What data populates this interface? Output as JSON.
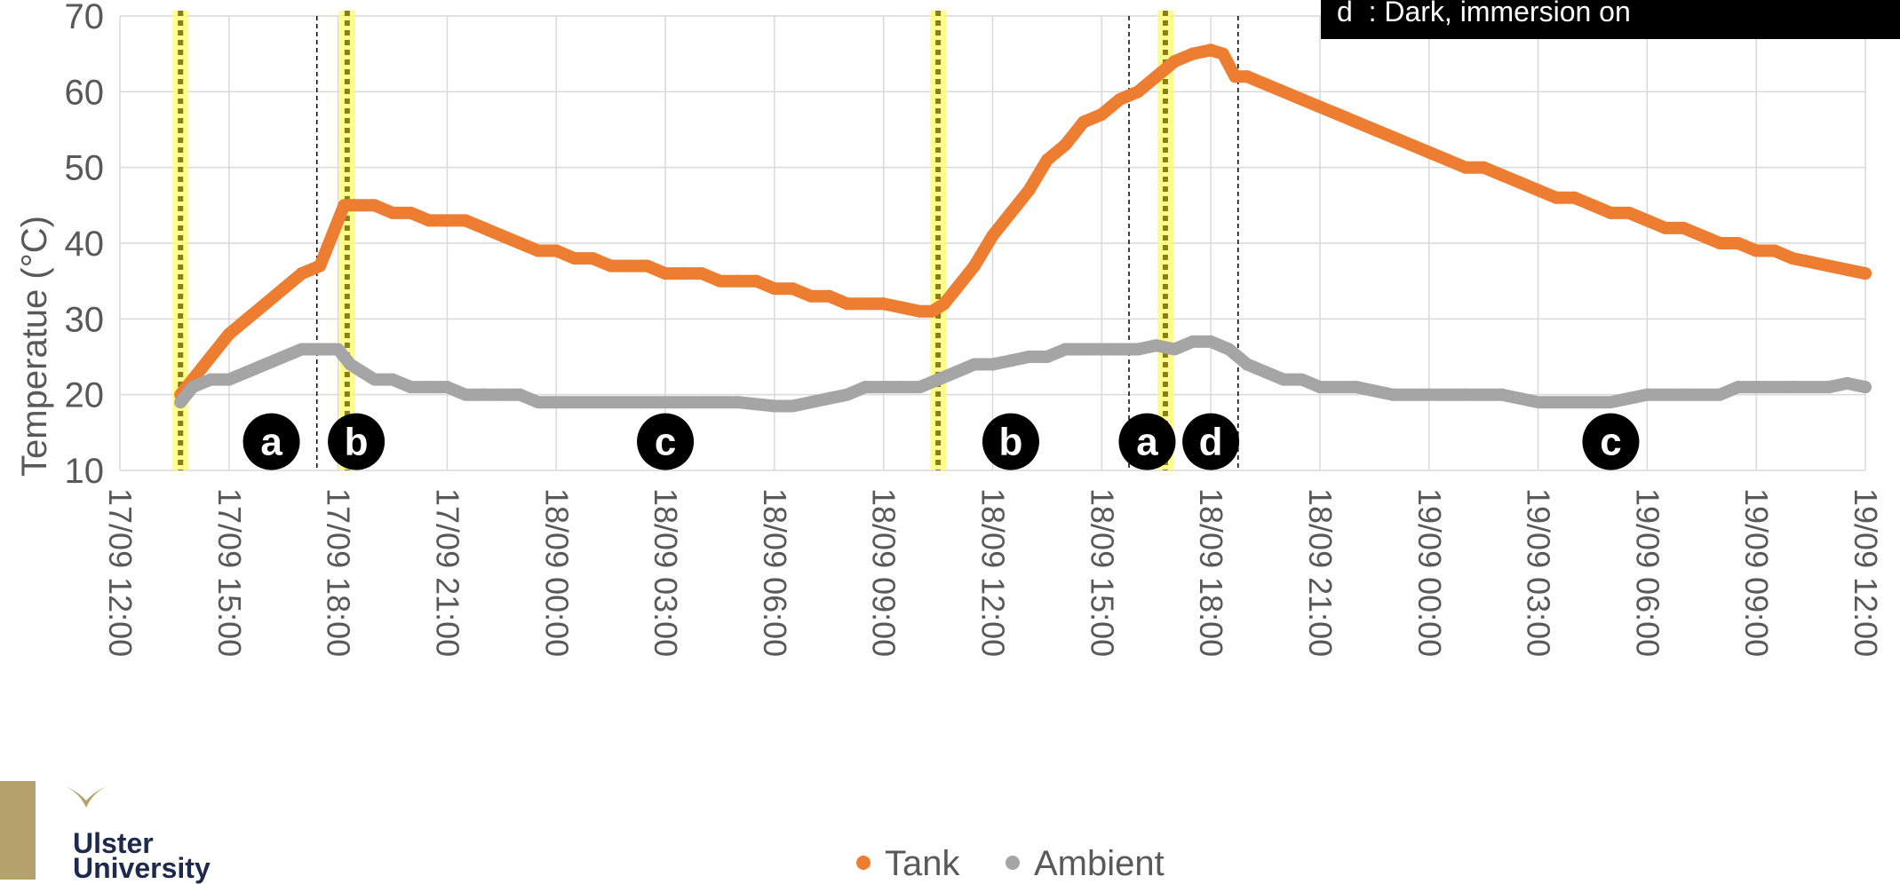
{
  "chart_data": {
    "type": "line",
    "ylabel": "Temperatue (°C)",
    "ylim": [
      10,
      70
    ],
    "yticks": [
      10,
      20,
      30,
      40,
      50,
      60,
      70
    ],
    "xlim": [
      "17/09 12:00",
      "19/09 12:00"
    ],
    "xtick_labels": [
      "17/09 12:00",
      "17/09 15:00",
      "17/09 18:00",
      "17/09 21:00",
      "18/09 00:00",
      "18/09 03:00",
      "18/09 06:00",
      "18/09 09:00",
      "18/09 12:00",
      "18/09 15:00",
      "18/09 18:00",
      "18/09 21:00",
      "19/09 00:00",
      "19/09 03:00",
      "19/09 06:00",
      "19/09 09:00",
      "19/09 12:00"
    ],
    "grid": true,
    "legend_position": "bottom",
    "series": [
      {
        "name": "Tank",
        "color": "#ED7D31",
        "points": [
          [
            "17/09 13:40",
            20
          ],
          [
            "17/09 14:00",
            22
          ],
          [
            "17/09 14:30",
            25
          ],
          [
            "17/09 15:00",
            28
          ],
          [
            "17/09 15:30",
            30
          ],
          [
            "17/09 16:00",
            32
          ],
          [
            "17/09 16:30",
            34
          ],
          [
            "17/09 17:00",
            36
          ],
          [
            "17/09 17:30",
            37
          ],
          [
            "17/09 17:50",
            41
          ],
          [
            "17/09 18:10",
            45
          ],
          [
            "17/09 18:40",
            45
          ],
          [
            "17/09 19:00",
            45
          ],
          [
            "17/09 19:30",
            44
          ],
          [
            "17/09 20:00",
            44
          ],
          [
            "17/09 20:30",
            43
          ],
          [
            "17/09 21:00",
            43
          ],
          [
            "17/09 21:30",
            43
          ],
          [
            "17/09 22:00",
            42
          ],
          [
            "17/09 22:30",
            41
          ],
          [
            "17/09 23:00",
            40
          ],
          [
            "17/09 23:30",
            39
          ],
          [
            "18/09 00:00",
            39
          ],
          [
            "18/09 00:30",
            38
          ],
          [
            "18/09 01:00",
            38
          ],
          [
            "18/09 01:30",
            37
          ],
          [
            "18/09 02:00",
            37
          ],
          [
            "18/09 02:30",
            37
          ],
          [
            "18/09 03:00",
            36
          ],
          [
            "18/09 03:30",
            36
          ],
          [
            "18/09 04:00",
            36
          ],
          [
            "18/09 04:30",
            35
          ],
          [
            "18/09 05:00",
            35
          ],
          [
            "18/09 05:30",
            35
          ],
          [
            "18/09 06:00",
            34
          ],
          [
            "18/09 06:30",
            34
          ],
          [
            "18/09 07:00",
            33
          ],
          [
            "18/09 07:30",
            33
          ],
          [
            "18/09 08:00",
            32
          ],
          [
            "18/09 08:30",
            32
          ],
          [
            "18/09 09:00",
            32
          ],
          [
            "18/09 09:30",
            31.5
          ],
          [
            "18/09 10:00",
            31
          ],
          [
            "18/09 10:20",
            31
          ],
          [
            "18/09 10:40",
            32
          ],
          [
            "18/09 11:00",
            34
          ],
          [
            "18/09 11:30",
            37
          ],
          [
            "18/09 12:00",
            41
          ],
          [
            "18/09 12:30",
            44
          ],
          [
            "18/09 13:00",
            47
          ],
          [
            "18/09 13:30",
            51
          ],
          [
            "18/09 14:00",
            53
          ],
          [
            "18/09 14:30",
            56
          ],
          [
            "18/09 15:00",
            57
          ],
          [
            "18/09 15:30",
            59
          ],
          [
            "18/09 16:00",
            60
          ],
          [
            "18/09 16:30",
            62
          ],
          [
            "18/09 17:00",
            64
          ],
          [
            "18/09 17:30",
            65
          ],
          [
            "18/09 18:00",
            65.5
          ],
          [
            "18/09 18:20",
            65
          ],
          [
            "18/09 18:40",
            62
          ],
          [
            "18/09 19:00",
            62
          ],
          [
            "18/09 19:30",
            61
          ],
          [
            "18/09 20:00",
            60
          ],
          [
            "18/09 20:30",
            59
          ],
          [
            "18/09 21:00",
            58
          ],
          [
            "18/09 21:30",
            57
          ],
          [
            "18/09 22:00",
            56
          ],
          [
            "18/09 22:30",
            55
          ],
          [
            "18/09 23:00",
            54
          ],
          [
            "18/09 23:30",
            53
          ],
          [
            "19/09 00:00",
            52
          ],
          [
            "19/09 00:30",
            51
          ],
          [
            "19/09 01:00",
            50
          ],
          [
            "19/09 01:30",
            50
          ],
          [
            "19/09 02:00",
            49
          ],
          [
            "19/09 02:30",
            48
          ],
          [
            "19/09 03:00",
            47
          ],
          [
            "19/09 03:30",
            46
          ],
          [
            "19/09 04:00",
            46
          ],
          [
            "19/09 04:30",
            45
          ],
          [
            "19/09 05:00",
            44
          ],
          [
            "19/09 05:30",
            44
          ],
          [
            "19/09 06:00",
            43
          ],
          [
            "19/09 06:30",
            42
          ],
          [
            "19/09 07:00",
            42
          ],
          [
            "19/09 07:30",
            41
          ],
          [
            "19/09 08:00",
            40
          ],
          [
            "19/09 08:30",
            40
          ],
          [
            "19/09 09:00",
            39
          ],
          [
            "19/09 09:30",
            39
          ],
          [
            "19/09 10:00",
            38
          ],
          [
            "19/09 10:30",
            37.5
          ],
          [
            "19/09 11:00",
            37
          ],
          [
            "19/09 11:30",
            36.5
          ],
          [
            "19/09 12:00",
            36
          ]
        ]
      },
      {
        "name": "Ambient",
        "color": "#A5A5A5",
        "points": [
          [
            "17/09 13:40",
            19
          ],
          [
            "17/09 14:00",
            21
          ],
          [
            "17/09 14:30",
            22
          ],
          [
            "17/09 15:00",
            22
          ],
          [
            "17/09 15:30",
            23
          ],
          [
            "17/09 16:00",
            24
          ],
          [
            "17/09 16:30",
            25
          ],
          [
            "17/09 17:00",
            26
          ],
          [
            "17/09 17:30",
            26
          ],
          [
            "17/09 18:00",
            26
          ],
          [
            "17/09 18:20",
            24
          ],
          [
            "17/09 18:40",
            23
          ],
          [
            "17/09 19:00",
            22
          ],
          [
            "17/09 19:30",
            22
          ],
          [
            "17/09 20:00",
            21
          ],
          [
            "17/09 20:30",
            21
          ],
          [
            "17/09 21:00",
            21
          ],
          [
            "17/09 21:30",
            20
          ],
          [
            "17/09 22:00",
            20
          ],
          [
            "17/09 22:30",
            20
          ],
          [
            "17/09 23:00",
            20
          ],
          [
            "17/09 23:30",
            19
          ],
          [
            "18/09 00:00",
            19
          ],
          [
            "18/09 01:00",
            19
          ],
          [
            "18/09 02:00",
            19
          ],
          [
            "18/09 03:00",
            19
          ],
          [
            "18/09 04:00",
            19
          ],
          [
            "18/09 05:00",
            19
          ],
          [
            "18/09 06:00",
            18.5
          ],
          [
            "18/09 06:30",
            18.5
          ],
          [
            "18/09 07:00",
            19
          ],
          [
            "18/09 07:30",
            19.5
          ],
          [
            "18/09 08:00",
            20
          ],
          [
            "18/09 08:30",
            21
          ],
          [
            "18/09 09:00",
            21
          ],
          [
            "18/09 09:30",
            21
          ],
          [
            "18/09 10:00",
            21
          ],
          [
            "18/09 10:30",
            22
          ],
          [
            "18/09 11:00",
            23
          ],
          [
            "18/09 11:30",
            24
          ],
          [
            "18/09 12:00",
            24
          ],
          [
            "18/09 12:30",
            24.5
          ],
          [
            "18/09 13:00",
            25
          ],
          [
            "18/09 13:30",
            25
          ],
          [
            "18/09 14:00",
            26
          ],
          [
            "18/09 15:00",
            26
          ],
          [
            "18/09 16:00",
            26
          ],
          [
            "18/09 16:30",
            26.5
          ],
          [
            "18/09 17:00",
            26
          ],
          [
            "18/09 17:30",
            27
          ],
          [
            "18/09 18:00",
            27
          ],
          [
            "18/09 18:30",
            26
          ],
          [
            "18/09 19:00",
            24
          ],
          [
            "18/09 19:30",
            23
          ],
          [
            "18/09 20:00",
            22
          ],
          [
            "18/09 20:30",
            22
          ],
          [
            "18/09 21:00",
            21
          ],
          [
            "18/09 22:00",
            21
          ],
          [
            "18/09 23:00",
            20
          ],
          [
            "19/09 00:00",
            20
          ],
          [
            "19/09 01:00",
            20
          ],
          [
            "19/09 02:00",
            20
          ],
          [
            "19/09 03:00",
            19
          ],
          [
            "19/09 04:00",
            19
          ],
          [
            "19/09 05:00",
            19
          ],
          [
            "19/09 05:30",
            19.5
          ],
          [
            "19/09 06:00",
            20
          ],
          [
            "19/09 07:00",
            20
          ],
          [
            "19/09 08:00",
            20
          ],
          [
            "19/09 08:30",
            21
          ],
          [
            "19/09 09:00",
            21
          ],
          [
            "19/09 10:00",
            21
          ],
          [
            "19/09 11:00",
            21
          ],
          [
            "19/09 11:30",
            21.5
          ],
          [
            "19/09 12:00",
            21
          ]
        ]
      }
    ],
    "highlight_lines": [
      "17/09 13:40",
      "17/09 18:15",
      "18/09 10:30",
      "18/09 16:45"
    ],
    "dashed_lines": [
      "17/09 17:25",
      "18/09 15:45",
      "18/09 18:45"
    ],
    "annotations": [
      {
        "label": "a",
        "x": "17/09 16:10",
        "y": 13.8
      },
      {
        "label": "b",
        "x": "17/09 18:30",
        "y": 13.8
      },
      {
        "label": "c",
        "x": "18/09 03:00",
        "y": 13.8
      },
      {
        "label": "b",
        "x": "18/09 12:30",
        "y": 13.8
      },
      {
        "label": "a",
        "x": "18/09 16:15",
        "y": 13.8
      },
      {
        "label": "d",
        "x": "18/09 18:00",
        "y": 13.8
      },
      {
        "label": "c",
        "x": "19/09 05:00",
        "y": 13.8
      }
    ],
    "annotation_box_text": "d  : Dark, immersion on"
  },
  "logo": {
    "line1": "Ulster",
    "line2": "University"
  }
}
